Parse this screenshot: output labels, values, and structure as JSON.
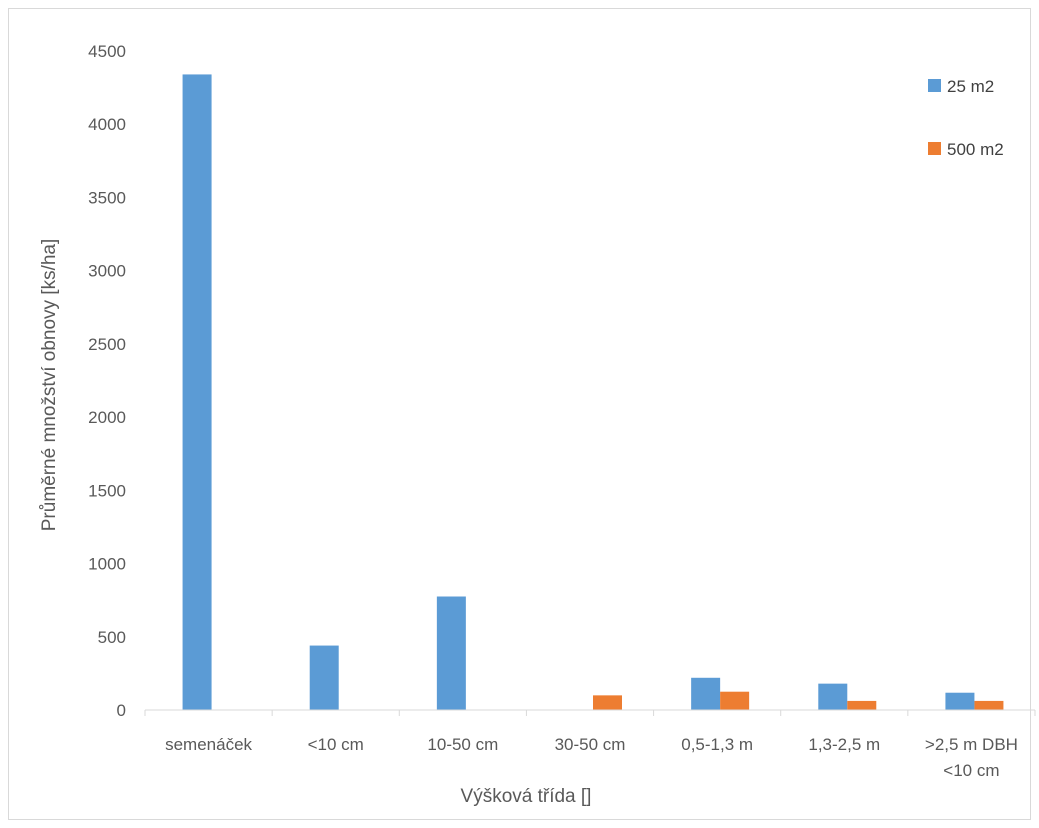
{
  "chart_data": {
    "type": "bar",
    "title": "",
    "xlabel": "Výšková třída []",
    "ylabel": "Průměrné množství obnovy [ks/ha]",
    "ylim": [
      0,
      4500
    ],
    "yticks": [
      0,
      500,
      1000,
      1500,
      2000,
      2500,
      3000,
      3500,
      4000,
      4500
    ],
    "grid": false,
    "legend_position": "top-right",
    "categories": [
      [
        "semenáček"
      ],
      [
        "<10 cm"
      ],
      [
        "10-50 cm"
      ],
      [
        "30-50 cm"
      ],
      [
        "0,5-1,3 m"
      ],
      [
        "1,3-2,5 m"
      ],
      [
        ">2,5 m DBH",
        "<10 cm"
      ]
    ],
    "series": [
      {
        "name": "25 m2",
        "color": "#5b9bd5",
        "values": [
          4340,
          440,
          775,
          0,
          220,
          180,
          118
        ]
      },
      {
        "name": "500 m2",
        "color": "#ed7d31",
        "values": [
          0,
          0,
          0,
          100,
          125,
          62,
          62
        ]
      }
    ]
  }
}
